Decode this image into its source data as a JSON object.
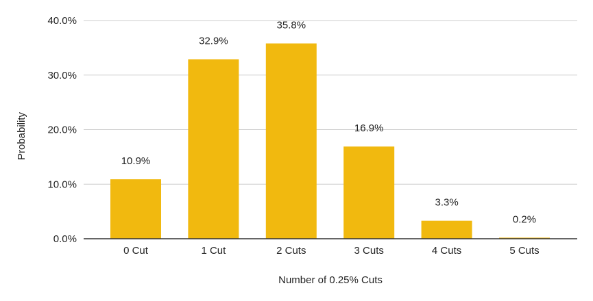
{
  "chart_data": {
    "type": "bar",
    "title": "",
    "xlabel": "Number of 0.25% Cuts",
    "ylabel": "Probability",
    "categories": [
      "0 Cut",
      "1 Cut",
      "2 Cuts",
      "3 Cuts",
      "4 Cuts",
      "5 Cuts"
    ],
    "values": [
      10.9,
      32.9,
      35.8,
      16.9,
      3.3,
      0.2
    ],
    "data_labels": [
      "10.9%",
      "32.9%",
      "35.8%",
      "16.9%",
      "3.3%",
      "0.2%"
    ],
    "ylim": [
      0,
      40
    ],
    "yticks": [
      0,
      10,
      20,
      30,
      40
    ],
    "ytick_labels": [
      "0.0%",
      "10.0%",
      "20.0%",
      "30.0%",
      "40.0%"
    ],
    "grid": true,
    "legend": "none",
    "bar_color": "#F1B90F",
    "grid_color": "#CCCCCC",
    "axis_color": "#333333"
  }
}
